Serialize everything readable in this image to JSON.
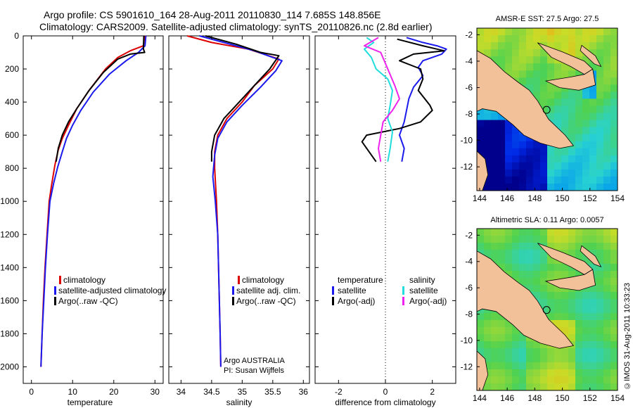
{
  "header": {
    "line1": "Argo profile: CS 5901610_164 28-Aug-2011 20110830_114 7.685S 148.856E",
    "line2": "Climatology: CARS2009. Satellite-adjusted climatology: synTS_20110826.nc (2.8d earlier)"
  },
  "credit": "©IMOS 31-Aug-2011 10:33:23",
  "colors": {
    "red": "#dd0000",
    "blue": "#1a1aee",
    "black": "#000000",
    "cyan": "#22dddd",
    "magenta": "#ee22ee",
    "land": "#f2c19a"
  },
  "chart_data": [
    {
      "type": "line",
      "name": "temperature",
      "xlabel": "temperature",
      "ylabel": "",
      "xlim": [
        -2,
        32
      ],
      "ylim": [
        2100,
        0
      ],
      "xticks": [
        0,
        10,
        20,
        30
      ],
      "yticks": [
        0,
        200,
        400,
        600,
        800,
        1000,
        1200,
        1400,
        1600,
        1800,
        2000
      ],
      "legend": [
        "climatology",
        "satellite-adjusted climatology",
        "Argo(..raw -QC)"
      ],
      "series": [
        {
          "name": "climatology",
          "color": "red",
          "points": [
            [
              27.5,
              0
            ],
            [
              27.2,
              60
            ],
            [
              24,
              90
            ],
            [
              21,
              130
            ],
            [
              18,
              200
            ],
            [
              14,
              330
            ],
            [
              11,
              440
            ],
            [
              9,
              540
            ],
            [
              7.5,
              620
            ],
            [
              6.5,
              690
            ],
            [
              5.7,
              780
            ],
            [
              4.9,
              900
            ],
            [
              4.3,
              1000
            ],
            [
              3.8,
              1200
            ],
            [
              3.3,
              1400
            ],
            [
              2.9,
              1600
            ],
            [
              2.6,
              1800
            ],
            [
              2.3,
              2000
            ]
          ]
        },
        {
          "name": "satellite",
          "color": "blue",
          "points": [
            [
              27.8,
              0
            ],
            [
              27.6,
              60
            ],
            [
              26,
              100
            ],
            [
              23,
              150
            ],
            [
              19,
              230
            ],
            [
              15,
              340
            ],
            [
              12,
              450
            ],
            [
              10,
              540
            ],
            [
              8.5,
              620
            ],
            [
              7.5,
              700
            ],
            [
              6.4,
              790
            ],
            [
              5.4,
              890
            ],
            [
              4.5,
              1000
            ],
            [
              3.9,
              1200
            ],
            [
              3.4,
              1400
            ],
            [
              3,
              1600
            ],
            [
              2.6,
              1800
            ],
            [
              2.3,
              2000
            ]
          ]
        },
        {
          "name": "argo",
          "color": "black",
          "points": [
            [
              27.3,
              0
            ],
            [
              27.2,
              80
            ],
            [
              27.5,
              100
            ],
            [
              24,
              110
            ],
            [
              21,
              140
            ],
            [
              17.5,
              220
            ],
            [
              14,
              330
            ],
            [
              11,
              440
            ],
            [
              9,
              520
            ],
            [
              7.5,
              600
            ],
            [
              6.5,
              680
            ],
            [
              6,
              760
            ]
          ]
        }
      ]
    },
    {
      "type": "line",
      "name": "salinity",
      "xlabel": "salinity",
      "ylabel": "",
      "xlim": [
        33.8,
        36.1
      ],
      "ylim": [
        2100,
        0
      ],
      "xticks": [
        34,
        34.5,
        35,
        35.5,
        36
      ],
      "yticks": [
        0,
        200,
        400,
        600,
        800,
        1000,
        1200,
        1400,
        1600,
        1800,
        2000
      ],
      "legend": [
        "climatology",
        "satellite adj. clim.",
        "Argo(..raw -QC)"
      ],
      "annotation": [
        "Argo AUSTRALIA",
        "PI: Susan Wijffels"
      ],
      "series": [
        {
          "name": "climatology",
          "color": "red",
          "points": [
            [
              34.1,
              0
            ],
            [
              34.5,
              40
            ],
            [
              35.1,
              80
            ],
            [
              35.6,
              140
            ],
            [
              35.5,
              200
            ],
            [
              35.2,
              300
            ],
            [
              35,
              400
            ],
            [
              34.75,
              500
            ],
            [
              34.6,
              600
            ],
            [
              34.55,
              700
            ],
            [
              34.55,
              800
            ],
            [
              34.58,
              1000
            ],
            [
              34.6,
              1200
            ],
            [
              34.62,
              1500
            ],
            [
              34.64,
              1800
            ],
            [
              34.65,
              2000
            ]
          ]
        },
        {
          "name": "satellite",
          "color": "blue",
          "points": [
            [
              34.3,
              0
            ],
            [
              34.7,
              40
            ],
            [
              35.2,
              90
            ],
            [
              35.65,
              150
            ],
            [
              35.55,
              210
            ],
            [
              35.3,
              310
            ],
            [
              35,
              420
            ],
            [
              34.75,
              520
            ],
            [
              34.6,
              620
            ],
            [
              34.55,
              720
            ],
            [
              34.52,
              850
            ],
            [
              34.56,
              1000
            ],
            [
              34.6,
              1200
            ],
            [
              34.62,
              1500
            ],
            [
              34.64,
              1800
            ],
            [
              34.65,
              2000
            ]
          ]
        },
        {
          "name": "argo",
          "color": "black",
          "points": [
            [
              34.4,
              0
            ],
            [
              34.9,
              50
            ],
            [
              35.3,
              100
            ],
            [
              35.6,
              120
            ],
            [
              35.45,
              200
            ],
            [
              35.2,
              300
            ],
            [
              34.9,
              420
            ],
            [
              34.7,
              500
            ],
            [
              34.55,
              600
            ],
            [
              34.5,
              700
            ],
            [
              34.5,
              760
            ]
          ]
        }
      ]
    },
    {
      "type": "line",
      "name": "difference",
      "xlabel": "difference from climatology",
      "ylabel": "",
      "xlim": [
        -3,
        3
      ],
      "ylim": [
        2100,
        0
      ],
      "xticks": [
        -2,
        0,
        2
      ],
      "yticks": [
        0,
        200,
        400,
        600,
        800,
        1000,
        1200,
        1400,
        1600,
        1800,
        2000
      ],
      "legend_left": [
        "temperature",
        "satellite",
        "Argo(-adj)"
      ],
      "legend_right": [
        "salinity",
        "satellite",
        "Argo(-adj)"
      ],
      "series": [
        {
          "name": "temp satellite",
          "color": "blue",
          "points": [
            [
              0.9,
              10
            ],
            [
              1.6,
              40
            ],
            [
              2.2,
              60
            ],
            [
              2.6,
              80
            ],
            [
              2.4,
              110
            ],
            [
              1.6,
              150
            ],
            [
              1.4,
              190
            ],
            [
              1.6,
              240
            ],
            [
              1.2,
              310
            ],
            [
              1.0,
              380
            ],
            [
              0.9,
              450
            ],
            [
              0.8,
              520
            ],
            [
              0.6,
              600
            ],
            [
              0.8,
              680
            ],
            [
              0.7,
              760
            ]
          ]
        },
        {
          "name": "temp argo",
          "color": "black",
          "points": [
            [
              0.5,
              20
            ],
            [
              1.6,
              60
            ],
            [
              2.2,
              80
            ],
            [
              2.5,
              90
            ],
            [
              1.2,
              110
            ],
            [
              0.6,
              150
            ],
            [
              1.5,
              200
            ],
            [
              1.6,
              260
            ],
            [
              1.4,
              330
            ],
            [
              1.9,
              420
            ],
            [
              2.0,
              450
            ],
            [
              1.5,
              520
            ],
            [
              0.6,
              560
            ],
            [
              -0.8,
              600
            ],
            [
              -1,
              640
            ],
            [
              -0.7,
              700
            ],
            [
              -0.4,
              760
            ]
          ]
        },
        {
          "name": "sal satellite",
          "color": "cyan",
          "points": [
            [
              -0.8,
              10
            ],
            [
              -0.5,
              40
            ],
            [
              -0.9,
              80
            ],
            [
              -0.6,
              130
            ],
            [
              -0.4,
              200
            ],
            [
              0.1,
              260
            ],
            [
              0.3,
              330
            ],
            [
              0.2,
              420
            ],
            [
              0.1,
              500
            ],
            [
              0.3,
              580
            ],
            [
              0.2,
              680
            ],
            [
              0.1,
              760
            ]
          ]
        },
        {
          "name": "sal argo",
          "color": "magenta",
          "points": [
            [
              -0.3,
              10
            ],
            [
              -0.9,
              60
            ],
            [
              -0.2,
              100
            ],
            [
              0.1,
              200
            ],
            [
              0.4,
              300
            ],
            [
              0.6,
              380
            ],
            [
              0.3,
              450
            ],
            [
              -0.1,
              520
            ],
            [
              -0.2,
              600
            ],
            [
              -0.3,
              680
            ],
            [
              -0.2,
              760
            ]
          ]
        }
      ]
    },
    {
      "type": "heatmap",
      "name": "sst-map",
      "title": "AMSR-E SST: 27.5 Argo: 27.5",
      "xlim": [
        143.8,
        154
      ],
      "ylim": [
        -13.8,
        -1.5
      ],
      "xticks": [
        144,
        146,
        148,
        150,
        152,
        154
      ],
      "yticks": [
        -2,
        -4,
        -6,
        -8,
        -10,
        -12
      ],
      "argo_position": [
        148.856,
        -7.685
      ]
    },
    {
      "type": "heatmap",
      "name": "sla-map",
      "title": "Altimetric SLA: 0.11 Argo: 0.0057",
      "xlim": [
        143.8,
        154
      ],
      "ylim": [
        -13.8,
        -1.5
      ],
      "xticks": [
        144,
        146,
        148,
        150,
        152,
        154
      ],
      "yticks": [
        -2,
        -4,
        -6,
        -8,
        -10,
        -12
      ],
      "argo_position": [
        148.856,
        -7.685
      ]
    }
  ]
}
